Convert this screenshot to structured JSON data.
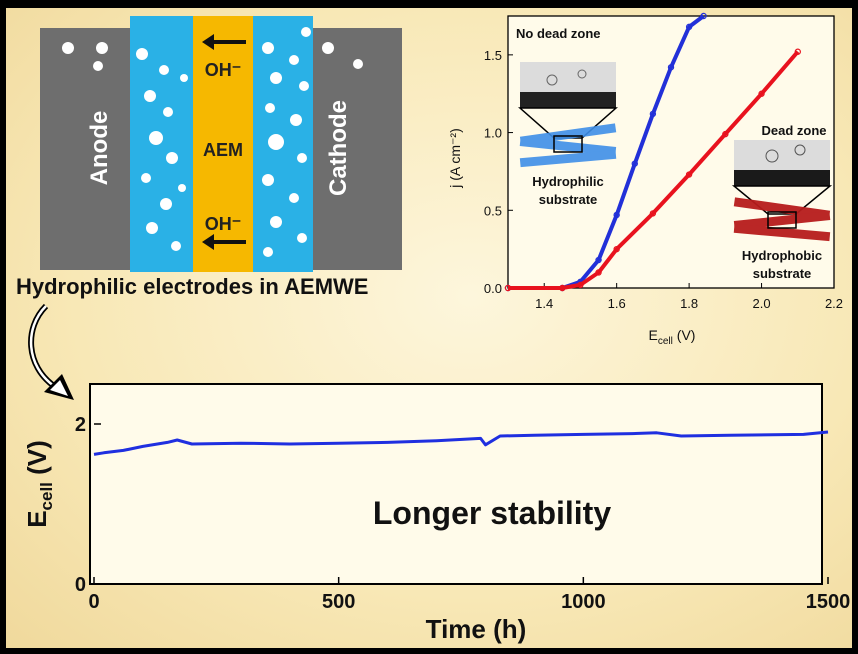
{
  "schematic": {
    "anode_label": "Anode",
    "cathode_label": "Cathode",
    "aem_label": "AEM",
    "oh_top": "OH⁻",
    "oh_bottom": "OH⁻",
    "colors": {
      "electrode": "#6e6e6e",
      "electrolyte": "#2ab1e6",
      "membrane": "#f6b800"
    }
  },
  "caption": "Hydrophilic electrodes in AEMWE",
  "chart_data": [
    {
      "type": "line",
      "xlabel": "E",
      "xlabel_sub": "cell",
      "xlabel_unit": "(V)",
      "ylabel": "j (A cm⁻²)",
      "xlim": [
        1.3,
        2.2
      ],
      "ylim": [
        0,
        1.75
      ],
      "x_ticks": [
        1.4,
        1.6,
        1.8,
        2.0,
        2.2
      ],
      "y_ticks": [
        0.0,
        0.5,
        1.0,
        1.5
      ],
      "series": [
        {
          "color": "#2230d8",
          "x": [
            1.3,
            1.45,
            1.5,
            1.55,
            1.6,
            1.65,
            1.7,
            1.75,
            1.8,
            1.84
          ],
          "y": [
            0,
            0,
            0.04,
            0.18,
            0.47,
            0.8,
            1.12,
            1.42,
            1.68,
            1.75
          ]
        },
        {
          "color": "#e8121e",
          "x": [
            1.3,
            1.45,
            1.5,
            1.55,
            1.6,
            1.7,
            1.8,
            1.9,
            2.0,
            2.1
          ],
          "y": [
            0,
            0,
            0.02,
            0.1,
            0.25,
            0.48,
            0.73,
            0.99,
            1.25,
            1.52
          ]
        }
      ],
      "annotations": [
        {
          "text": "No dead zone"
        },
        {
          "text": "Hydrophilic"
        },
        {
          "text": "substrate"
        },
        {
          "text": "Dead zone"
        },
        {
          "text": "Hydrophobic"
        },
        {
          "text": "substrate"
        }
      ]
    },
    {
      "type": "line",
      "xlabel": "Time (h)",
      "ylabel": "E",
      "ylabel_sub": "cell",
      "ylabel_unit": "(V)",
      "xlim": [
        0,
        1500
      ],
      "ylim": [
        0,
        2.5
      ],
      "x_ticks": [
        0,
        500,
        1000,
        1500
      ],
      "y_ticks": [
        0,
        2
      ],
      "annotation": "Longer stability",
      "series": [
        {
          "color": "#1f2fe0",
          "x": [
            0,
            20,
            60,
            100,
            150,
            170,
            200,
            300,
            400,
            500,
            600,
            700,
            790,
            800,
            830,
            900,
            1000,
            1100,
            1150,
            1200,
            1300,
            1450,
            1500
          ],
          "y": [
            1.62,
            1.64,
            1.67,
            1.72,
            1.77,
            1.8,
            1.75,
            1.76,
            1.75,
            1.76,
            1.77,
            1.79,
            1.82,
            1.74,
            1.85,
            1.86,
            1.87,
            1.88,
            1.89,
            1.85,
            1.86,
            1.87,
            1.9
          ]
        }
      ]
    }
  ]
}
